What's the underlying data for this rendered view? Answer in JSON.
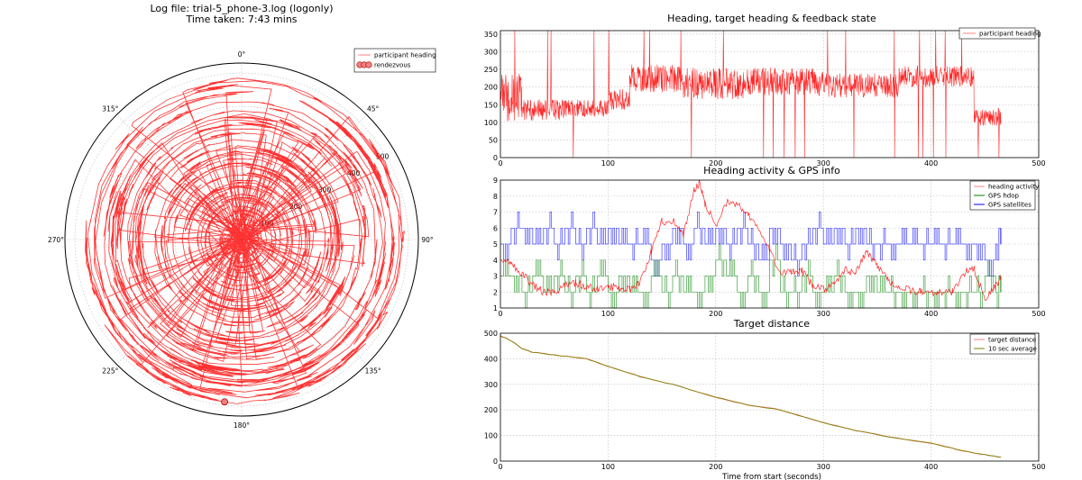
{
  "figure": {
    "title_line1": "Log file: trial-5_phone-3.log (logonly)",
    "title_line2": "Time taken: 7:43 mins"
  },
  "colors": {
    "heading": "#ff0000",
    "hdop": "#008000",
    "satellites": "#0000ff",
    "distance_avg": "#808000",
    "rendezvous": "#f08080"
  },
  "chart_data": [
    {
      "id": "polar",
      "type": "scatter",
      "subtype": "polar",
      "angle_ticks": [
        "0°",
        "45°",
        "90°",
        "135°",
        "180°",
        "225°",
        "270°",
        "315°"
      ],
      "radial_ticks": [
        "100",
        "200",
        "300",
        "400",
        "500"
      ],
      "rlim": [
        0,
        530
      ],
      "legend": [
        "participant heading",
        "rendezvous"
      ],
      "legend_loc": "upper right",
      "rendezvous": {
        "heading_deg": 186,
        "r": 490
      },
      "note": "heading angle plotted against remaining target distance (r); spiral decreasing from r≈490 to r≈15"
    },
    {
      "id": "heading",
      "type": "line",
      "title": "Heading, target heading & feedback state",
      "xlim": [
        0,
        500
      ],
      "ylim": [
        0,
        360
      ],
      "xticks": [
        "0",
        "100",
        "200",
        "300",
        "400",
        "500"
      ],
      "yticks": [
        "0",
        "50",
        "100",
        "150",
        "200",
        "250",
        "300",
        "350"
      ],
      "grid": true,
      "legend": [
        "participant heading"
      ],
      "legend_loc": "upper right",
      "series": [
        {
          "name": "participant heading",
          "segments": [
            {
              "t0": 0,
              "t1": 20,
              "mean": 170,
              "amp": 70
            },
            {
              "t0": 20,
              "t1": 60,
              "mean": 135,
              "amp": 30
            },
            {
              "t0": 60,
              "t1": 100,
              "mean": 140,
              "amp": 25
            },
            {
              "t0": 100,
              "t1": 120,
              "mean": 165,
              "amp": 30
            },
            {
              "t0": 120,
              "t1": 170,
              "mean": 225,
              "amp": 40
            },
            {
              "t0": 170,
              "t1": 230,
              "mean": 210,
              "amp": 45
            },
            {
              "t0": 230,
              "t1": 300,
              "mean": 215,
              "amp": 40
            },
            {
              "t0": 300,
              "t1": 370,
              "mean": 205,
              "amp": 35
            },
            {
              "t0": 370,
              "t1": 440,
              "mean": 230,
              "amp": 30
            },
            {
              "t0": 440,
              "t1": 465,
              "mean": 115,
              "amp": 25
            }
          ]
        }
      ]
    },
    {
      "id": "activity",
      "type": "line",
      "title": "Heading activity & GPS info",
      "xlim": [
        0,
        500
      ],
      "ylim": [
        1,
        9
      ],
      "xticks": [
        "0",
        "100",
        "200",
        "300",
        "400",
        "500"
      ],
      "yticks": [
        "1",
        "2",
        "3",
        "4",
        "5",
        "6",
        "7",
        "8",
        "9"
      ],
      "grid": true,
      "legend": [
        "heading activity",
        "GPS hdop",
        "GPS satellites"
      ],
      "legend_loc": "upper right",
      "series": [
        {
          "name": "heading activity",
          "x": [
            0,
            10,
            20,
            30,
            40,
            50,
            60,
            70,
            80,
            90,
            100,
            110,
            120,
            130,
            140,
            150,
            160,
            170,
            180,
            185,
            190,
            200,
            210,
            220,
            230,
            240,
            250,
            260,
            270,
            280,
            290,
            300,
            310,
            320,
            330,
            340,
            350,
            360,
            370,
            380,
            390,
            400,
            410,
            420,
            430,
            440,
            450,
            460,
            465
          ],
          "values": [
            4,
            3.8,
            3.2,
            2.4,
            2,
            1.9,
            2.4,
            2.6,
            2.3,
            2.2,
            2.3,
            2.3,
            2.2,
            2.6,
            4.5,
            6.4,
            6.5,
            5.6,
            8.4,
            8.8,
            7.5,
            6.2,
            7.6,
            7.5,
            6.8,
            5.9,
            4.6,
            3.3,
            3.2,
            3.3,
            2.4,
            2.2,
            2.4,
            3.4,
            3.2,
            4.5,
            3.7,
            2.8,
            2.3,
            2.1,
            2,
            2,
            2,
            2,
            3.2,
            3.4,
            1.6,
            2.3,
            3
          ]
        },
        {
          "name": "GPS hdop",
          "x": [
            0,
            10,
            20,
            30,
            40,
            50,
            60,
            70,
            80,
            90,
            100,
            110,
            120,
            130,
            140,
            150,
            160,
            170,
            180,
            190,
            200,
            210,
            220,
            230,
            240,
            250,
            260,
            270,
            280,
            290,
            300,
            310,
            320,
            330,
            340,
            350,
            360,
            370,
            380,
            390,
            400,
            410,
            420,
            430,
            440,
            450,
            460,
            465
          ],
          "values": [
            3,
            3,
            2,
            3,
            2,
            3,
            2,
            3,
            2,
            3,
            2,
            3,
            2,
            2,
            3,
            2,
            3,
            2,
            2,
            3,
            4,
            3,
            2,
            3,
            2,
            4,
            2,
            2,
            3,
            2,
            2,
            3,
            2,
            2,
            3,
            2,
            2,
            2,
            2,
            2,
            2,
            2,
            2,
            2,
            2,
            3,
            2,
            3
          ]
        },
        {
          "name": "GPS satellites",
          "x": [
            0,
            10,
            20,
            30,
            40,
            50,
            60,
            70,
            80,
            90,
            100,
            110,
            120,
            130,
            140,
            150,
            160,
            170,
            180,
            190,
            200,
            210,
            220,
            230,
            240,
            250,
            260,
            270,
            280,
            290,
            300,
            310,
            320,
            330,
            340,
            350,
            360,
            370,
            380,
            390,
            400,
            410,
            420,
            430,
            440,
            450,
            460,
            465
          ],
          "values": [
            5,
            6,
            6,
            5,
            6,
            5,
            6,
            5,
            6,
            5,
            6,
            5,
            5,
            5,
            4,
            5,
            6,
            5,
            6,
            5,
            6,
            5,
            6,
            5,
            4,
            6,
            5,
            4,
            5,
            6,
            5,
            6,
            5,
            6,
            5,
            5,
            5,
            5,
            5,
            5,
            5,
            5,
            5,
            5,
            5,
            4,
            5,
            6
          ]
        }
      ]
    },
    {
      "id": "distance",
      "type": "line",
      "title": "Target distance",
      "xlabel": "Time from start (seconds)",
      "xlim": [
        0,
        500
      ],
      "ylim": [
        0,
        500
      ],
      "xticks": [
        "0",
        "100",
        "200",
        "300",
        "400",
        "500"
      ],
      "yticks": [
        "0",
        "100",
        "200",
        "300",
        "400",
        "500"
      ],
      "grid": true,
      "legend": [
        "target distance",
        "10 sec average"
      ],
      "legend_loc": "upper right",
      "series": [
        {
          "name": "target distance",
          "x": [
            0,
            10,
            20,
            30,
            50,
            80,
            100,
            130,
            160,
            200,
            230,
            260,
            300,
            330,
            360,
            400,
            430,
            450,
            465
          ],
          "values": [
            490,
            470,
            440,
            425,
            415,
            400,
            370,
            330,
            300,
            250,
            220,
            200,
            150,
            120,
            95,
            70,
            40,
            25,
            15
          ]
        },
        {
          "name": "10 sec average",
          "x": [
            0,
            10,
            20,
            30,
            50,
            80,
            100,
            130,
            160,
            200,
            230,
            260,
            300,
            330,
            360,
            400,
            430,
            450,
            465
          ],
          "values": [
            490,
            470,
            440,
            425,
            415,
            400,
            370,
            330,
            300,
            250,
            220,
            200,
            150,
            120,
            95,
            70,
            40,
            25,
            15
          ]
        }
      ]
    }
  ]
}
